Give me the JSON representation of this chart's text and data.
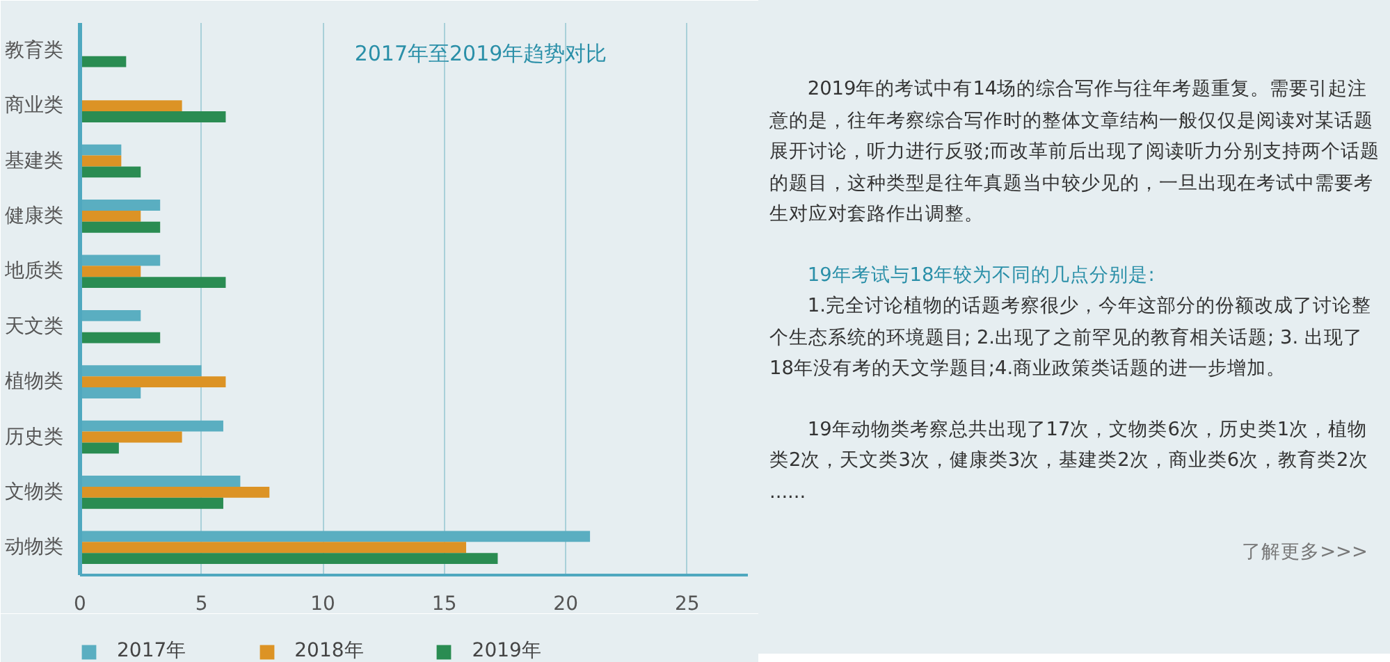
{
  "chart_data": {
    "type": "bar",
    "orientation": "horizontal",
    "title": "2017年至2019年趋势对比",
    "categories": [
      "教育类",
      "商业类",
      "基建类",
      "健康类",
      "地质类",
      "天文类",
      "植物类",
      "历史类",
      "文物类",
      "动物类"
    ],
    "series": [
      {
        "name": "2017年",
        "color": "#5aaec1",
        "values": [
          null,
          null,
          1.7,
          3.3,
          3.3,
          2.5,
          5.0,
          5.9,
          6.6,
          21.0
        ]
      },
      {
        "name": "2018年",
        "color": "#dc9325",
        "values": [
          null,
          4.2,
          1.7,
          2.5,
          2.5,
          null,
          6.0,
          4.2,
          7.8,
          15.9
        ]
      },
      {
        "name": "2019年",
        "color": "#2a8c52",
        "colors": [
          "#2a8c52",
          "#2a8c52",
          "#2a8c52",
          "#2a8c52",
          "#2a8c52",
          "#2a8c52",
          "#5aaec1",
          "#2a8c52",
          "#2a8c52",
          "#2a8c52"
        ],
        "values": [
          1.9,
          6.0,
          2.5,
          3.3,
          6.0,
          3.3,
          2.5,
          1.6,
          5.9,
          17.2
        ]
      }
    ],
    "xlim": [
      0,
      27.5
    ],
    "xticks": [
      0,
      5,
      10,
      15,
      20,
      25
    ],
    "grid": "x",
    "legend": "bottom",
    "annotations": [
      "2019年的考试中有14场的综合写作与往年考题重复。需要引起注意的是，往年考察综合写作时的整体文章结构一般仅仅是阅读对某话题展开讨论，听力进行反驳;而改革前后出现了阅读听力分别支持两个话题的题目，这种类型是往年真题当中较少见的，一旦出现在考试中需要考生对应对套路作出调整。",
      "19年考试与18年较为不同的几点分别是:",
      "1.完全讨论植物的话题考察很少，今年这部分的份额改成了讨论整个生态系统的环境题目; 2.出现了之前罕见的教育相关话题; 3. 出现了18年没有考的天文学题目;4.商业政策类话题的进一步增加。",
      "19年动物类考察总共出现了17次，文物类6次，历史类1次，植物类2次，天文类3次，健康类3次，基建类2次，商业类6次，教育类2次 ......",
      "了解更多>>>"
    ]
  }
}
